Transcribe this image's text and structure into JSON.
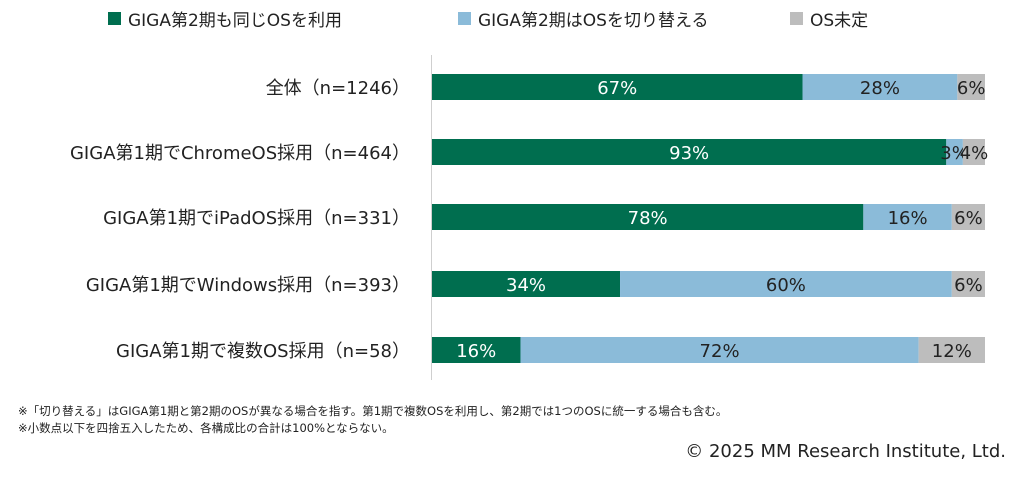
{
  "chart_data": {
    "type": "bar",
    "orientation": "horizontal",
    "stacked": true,
    "categories": [
      "全体（n=1246）",
      "GIGA第1期でChromeOS採用（n=464）",
      "GIGA第1期でiPadOS採用（n=331）",
      "GIGA第1期でWindows採用（n=393）",
      "GIGA第1期で複数OS採用（n=58）"
    ],
    "series": [
      {
        "name": "GIGA第2期も同じOSを利用",
        "color": "#006e4f",
        "label_color": "#ffffff",
        "values": [
          67,
          93,
          78,
          34,
          16
        ],
        "labels": [
          "67%",
          "93%",
          "78%",
          "34%",
          "16%"
        ]
      },
      {
        "name": "GIGA第2期はOSを切り替える",
        "color": "#8bbbd9",
        "label_color": "#222222",
        "values": [
          28,
          3,
          16,
          60,
          72
        ],
        "labels": [
          "28%",
          "3%",
          "16%",
          "60%",
          "72%"
        ]
      },
      {
        "name": "OS未定",
        "color": "#bdbdbd",
        "label_color": "#222222",
        "values": [
          6,
          4,
          6,
          6,
          12
        ],
        "labels": [
          "6%",
          "4%",
          "6%",
          "6%",
          "12%"
        ]
      }
    ],
    "xlim": [
      0,
      100
    ],
    "grid": false,
    "legend_position": "top"
  },
  "notes": [
    "※「切り替える」はGIGA第1期と第2期のOSが異なる場合を指す。第1期で複数OSを利用し、第2期では1つのOSに統一する場合も含む。",
    "※小数点以下を四捨五入したため、各構成比の合計は100%とならない。"
  ],
  "copyright": "© 2025 MM Research Institute, Ltd."
}
